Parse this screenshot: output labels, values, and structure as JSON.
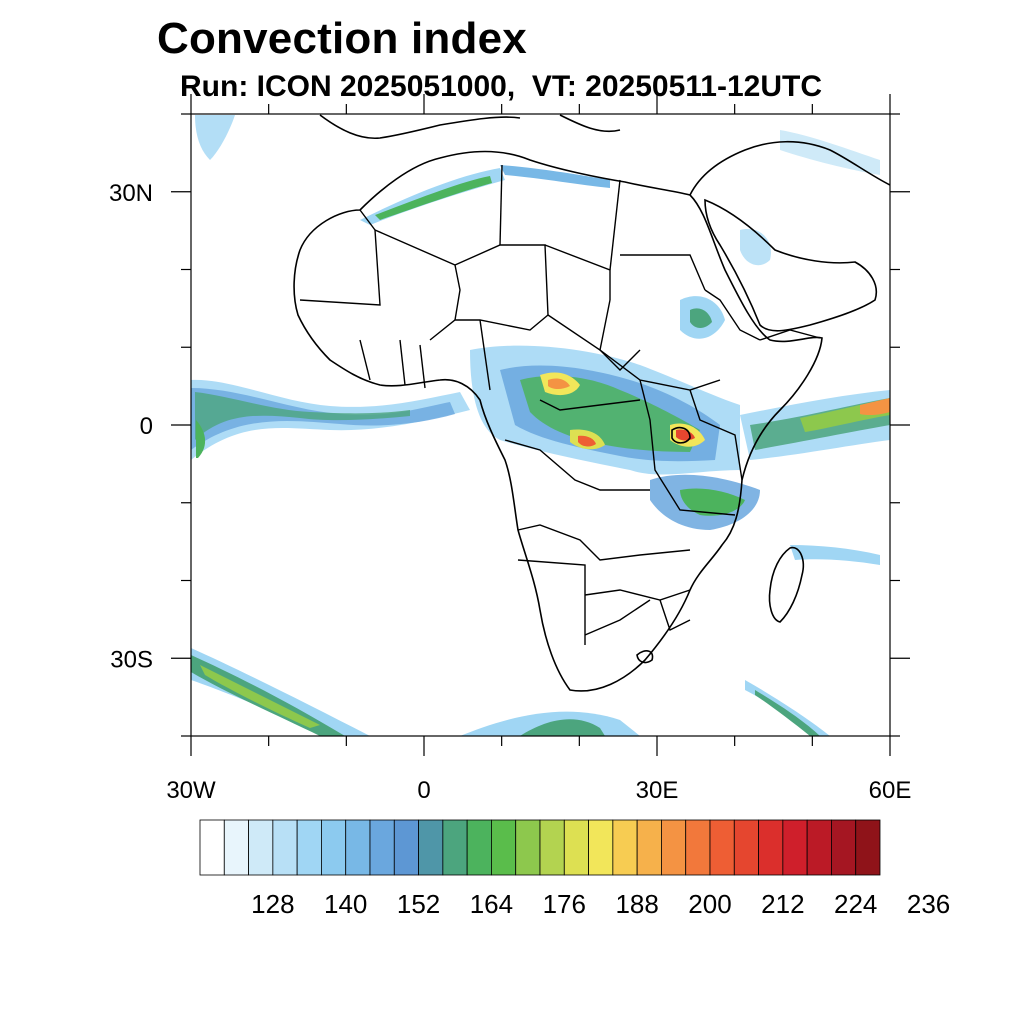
{
  "title": "Convection index",
  "subtitle": "Run: ICON 2025051000,  VT: 20250511-12UTC",
  "map": {
    "lon_range": [
      -30,
      60
    ],
    "lat_range": [
      -40,
      40
    ],
    "lat_ticks": [
      {
        "value": 30,
        "label": "30N"
      },
      {
        "value": 0,
        "label": "0"
      },
      {
        "value": -30,
        "label": "30S"
      }
    ],
    "lon_ticks": [
      {
        "value": -30,
        "label": "30W"
      },
      {
        "value": 0,
        "label": "0"
      },
      {
        "value": 30,
        "label": "30E"
      },
      {
        "value": 60,
        "label": "60E"
      }
    ]
  },
  "colorbar": {
    "colors": [
      "#ffffff",
      "#e8f5fc",
      "#cfeaf8",
      "#b8e0f6",
      "#a0d6f4",
      "#8ccaef",
      "#78b8e6",
      "#6aa7de",
      "#5d97d4",
      "#4f96a8",
      "#4ca57e",
      "#4cb35d",
      "#5abd4b",
      "#8dc84d",
      "#b3d350",
      "#dde052",
      "#f2e65a",
      "#f7cc52",
      "#f6b14b",
      "#f49343",
      "#f2783b",
      "#ee5e34",
      "#e5462f",
      "#db2f2c",
      "#cf1f2b",
      "#bb1a26",
      "#a51622",
      "#8f1319"
    ],
    "labels": [
      "128",
      "140",
      "152",
      "164",
      "176",
      "188",
      "200",
      "212",
      "224",
      "236"
    ]
  },
  "legend_labels": {
    "colorbar": "colorbar"
  }
}
